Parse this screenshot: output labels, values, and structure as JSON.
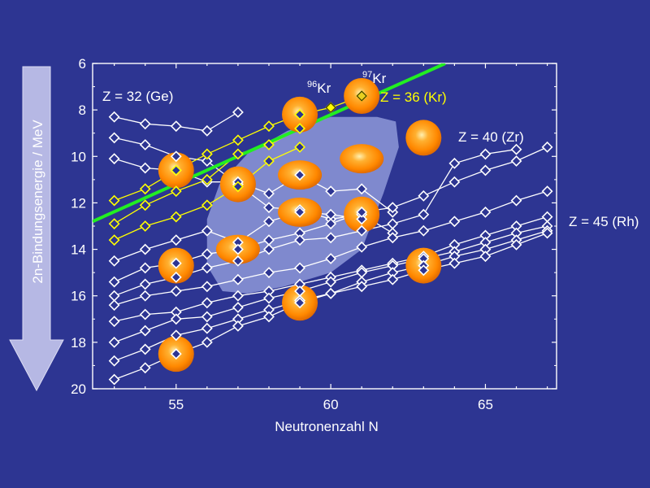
{
  "colors": {
    "background": "#2d3592",
    "series_line": "#ffffff",
    "kr_series": "#ffff00",
    "fit_line": "#22ee22",
    "marker_fill": "#2d3592",
    "highlight_region": "#8e98d8",
    "highlight_circle": "#ff9910"
  },
  "chart_data": {
    "type": "scatter",
    "xlabel": "Neutronenzahl N",
    "ylabel": "2n-Bindungsenergie / MeV",
    "xlim": [
      52.3,
      67.3
    ],
    "ylim": [
      20,
      6
    ],
    "y_inverted": true,
    "x_ticks": [
      55,
      60,
      65
    ],
    "y_ticks": [
      6,
      8,
      10,
      12,
      14,
      16,
      18,
      20
    ],
    "grid": false,
    "series": [
      {
        "name": "Z = 32 (Ge)",
        "points": [
          [
            53,
            8.3
          ],
          [
            54,
            8.6
          ],
          [
            55,
            8.7
          ],
          [
            56,
            8.9
          ],
          [
            57,
            8.1
          ]
        ]
      },
      {
        "points": [
          [
            53,
            9.2
          ],
          [
            54,
            9.5
          ],
          [
            55,
            10.0
          ],
          [
            56,
            10.2
          ],
          [
            57,
            11.2
          ],
          [
            58,
            12.2
          ],
          [
            59,
            12.3
          ],
          [
            60,
            12.7
          ],
          [
            61,
            12.5
          ],
          [
            62,
            13.3
          ]
        ]
      },
      {
        "points": [
          [
            53,
            10.1
          ],
          [
            54,
            10.5
          ],
          [
            55,
            10.6
          ],
          [
            56,
            11.1
          ],
          [
            57,
            11.1
          ],
          [
            58,
            11.6
          ],
          [
            59,
            10.8
          ],
          [
            60,
            11.5
          ],
          [
            61,
            11.4
          ],
          [
            62,
            12.4
          ]
        ]
      },
      {
        "name": "Z = 36 (Kr)",
        "highlight": "kr",
        "points": [
          [
            53,
            11.9
          ],
          [
            54,
            11.4
          ],
          [
            55,
            10.6
          ],
          [
            56,
            9.9
          ],
          [
            57,
            9.3
          ],
          [
            58,
            8.7
          ],
          [
            59,
            8.2
          ],
          [
            60,
            7.9
          ],
          [
            61,
            7.4
          ]
        ]
      },
      {
        "highlight": "kr",
        "points": [
          [
            53,
            12.9
          ],
          [
            54,
            12.1
          ],
          [
            55,
            11.5
          ],
          [
            56,
            11.0
          ],
          [
            57,
            9.9
          ],
          [
            58,
            9.5
          ],
          [
            59,
            8.8
          ]
        ]
      },
      {
        "highlight": "kr",
        "points": [
          [
            53,
            13.6
          ],
          [
            54,
            13.0
          ],
          [
            55,
            12.6
          ],
          [
            56,
            12.1
          ],
          [
            57,
            11.3
          ],
          [
            58,
            10.2
          ],
          [
            59,
            9.6
          ]
        ]
      },
      {
        "points": [
          [
            53,
            14.5
          ],
          [
            54,
            14.0
          ],
          [
            55,
            13.6
          ],
          [
            56,
            13.2
          ],
          [
            57,
            13.7
          ],
          [
            58,
            12.8
          ],
          [
            59,
            12.4
          ],
          [
            60,
            12.5
          ],
          [
            61,
            12.7
          ]
        ]
      },
      {
        "points": [
          [
            53,
            15.4
          ],
          [
            54,
            14.8
          ],
          [
            55,
            14.6
          ],
          [
            56,
            14.2
          ],
          [
            57,
            14.0
          ],
          [
            58,
            13.6
          ],
          [
            59,
            13.3
          ],
          [
            60,
            12.9
          ],
          [
            61,
            12.4
          ],
          [
            62,
            12.2
          ],
          [
            63,
            11.7
          ],
          [
            64,
            11.1
          ],
          [
            65,
            10.6
          ],
          [
            66,
            10.2
          ],
          [
            67,
            9.6
          ]
        ]
      },
      {
        "name": "Z = 40 (Zr)",
        "points": [
          [
            53,
            16.0
          ],
          [
            54,
            15.5
          ],
          [
            55,
            15.2
          ],
          [
            56,
            14.8
          ],
          [
            57,
            14.5
          ],
          [
            58,
            14.0
          ],
          [
            59,
            13.6
          ],
          [
            60,
            13.5
          ],
          [
            61,
            13.2
          ],
          [
            62,
            12.9
          ],
          [
            63,
            12.5
          ],
          [
            64,
            10.3
          ],
          [
            65,
            9.9
          ],
          [
            66,
            9.7
          ]
        ]
      },
      {
        "points": [
          [
            53,
            16.4
          ],
          [
            54,
            16.0
          ],
          [
            55,
            15.8
          ],
          [
            56,
            15.6
          ],
          [
            57,
            15.3
          ],
          [
            58,
            15.0
          ],
          [
            59,
            14.8
          ],
          [
            60,
            14.4
          ],
          [
            61,
            13.9
          ],
          [
            62,
            13.5
          ],
          [
            63,
            13.2
          ],
          [
            64,
            12.8
          ],
          [
            65,
            12.4
          ],
          [
            66,
            11.9
          ],
          [
            67,
            11.5
          ]
        ]
      },
      {
        "points": [
          [
            53,
            17.1
          ],
          [
            54,
            16.8
          ],
          [
            55,
            16.7
          ],
          [
            56,
            16.3
          ],
          [
            57,
            16.0
          ],
          [
            58,
            15.8
          ],
          [
            59,
            15.5
          ],
          [
            60,
            15.2
          ],
          [
            61,
            14.9
          ],
          [
            62,
            14.6
          ],
          [
            63,
            14.3
          ],
          [
            64,
            13.8
          ],
          [
            65,
            13.4
          ],
          [
            66,
            13.0
          ],
          [
            67,
            12.6
          ]
        ]
      },
      {
        "points": [
          [
            53,
            18.0
          ],
          [
            54,
            17.5
          ],
          [
            55,
            17.0
          ],
          [
            56,
            16.9
          ],
          [
            57,
            16.5
          ],
          [
            58,
            16.1
          ],
          [
            59,
            15.8
          ],
          [
            60,
            15.4
          ],
          [
            61,
            15.0
          ],
          [
            62,
            14.7
          ],
          [
            63,
            14.4
          ],
          [
            64,
            14.1
          ],
          [
            65,
            13.7
          ],
          [
            66,
            13.3
          ],
          [
            67,
            13.0
          ]
        ]
      },
      {
        "points": [
          [
            53,
            18.8
          ],
          [
            54,
            18.3
          ],
          [
            55,
            17.7
          ],
          [
            56,
            17.4
          ],
          [
            57,
            17.0
          ],
          [
            58,
            16.6
          ],
          [
            59,
            16.2
          ],
          [
            60,
            15.9
          ],
          [
            61,
            15.4
          ],
          [
            62,
            15.0
          ],
          [
            63,
            14.7
          ],
          [
            64,
            14.3
          ],
          [
            65,
            14.0
          ],
          [
            66,
            13.6
          ],
          [
            67,
            13.2
          ]
        ]
      },
      {
        "name": "Z = 45 (Rh)",
        "points": [
          [
            53,
            19.6
          ],
          [
            54,
            19.1
          ],
          [
            55,
            18.5
          ],
          [
            56,
            18.0
          ],
          [
            57,
            17.3
          ],
          [
            58,
            16.9
          ],
          [
            59,
            16.3
          ],
          [
            60,
            15.9
          ],
          [
            61,
            15.6
          ],
          [
            62,
            15.3
          ],
          [
            63,
            14.9
          ],
          [
            64,
            14.6
          ],
          [
            65,
            14.3
          ],
          [
            66,
            13.8
          ],
          [
            67,
            13.3
          ]
        ]
      }
    ],
    "fit_line": {
      "x": [
        52.3,
        63.7
      ],
      "y": [
        12.8,
        6.0
      ]
    },
    "highlight_region": [
      [
        56.4,
        11.2
      ],
      [
        57.3,
        9.9
      ],
      [
        58.6,
        8.9
      ],
      [
        60.0,
        8.3
      ],
      [
        61.5,
        8.3
      ],
      [
        62.1,
        8.5
      ],
      [
        62.2,
        9.6
      ],
      [
        61.7,
        11.6
      ],
      [
        61.0,
        14.0
      ],
      [
        60.0,
        15.0
      ],
      [
        58.5,
        15.6
      ],
      [
        57.3,
        15.9
      ],
      [
        56.5,
        15.8
      ],
      [
        56.0,
        14.7
      ],
      [
        56.0,
        12.7
      ]
    ],
    "highlight_circles": [
      {
        "x": 55,
        "y": 10.6,
        "shape": "circle"
      },
      {
        "x": 57,
        "y": 11.2,
        "shape": "circle"
      },
      {
        "x": 55,
        "y": 14.7,
        "shape": "circle"
      },
      {
        "x": 57,
        "y": 14.0,
        "shape": "ellipse"
      },
      {
        "x": 55,
        "y": 18.5,
        "shape": "circle"
      },
      {
        "x": 59,
        "y": 8.2,
        "shape": "circle"
      },
      {
        "x": 59,
        "y": 10.8,
        "shape": "ellipse"
      },
      {
        "x": 59,
        "y": 12.4,
        "shape": "ellipse"
      },
      {
        "x": 59,
        "y": 16.3,
        "shape": "circle"
      },
      {
        "x": 61,
        "y": 7.4,
        "shape": "circle"
      },
      {
        "x": 61,
        "y": 10.1,
        "shape": "ellipse"
      },
      {
        "x": 61,
        "y": 12.5,
        "shape": "circle"
      },
      {
        "x": 63,
        "y": 9.2,
        "shape": "circle"
      },
      {
        "x": 63,
        "y": 14.7,
        "shape": "circle"
      }
    ],
    "annotations": [
      {
        "id": "ge",
        "text": "Z = 32 (Ge)",
        "color": "white"
      },
      {
        "id": "kr",
        "text": "Z = 36 (Kr)",
        "color": "yellow"
      },
      {
        "id": "zr",
        "text": "Z = 40 (Zr)",
        "color": "white"
      },
      {
        "id": "rh",
        "text": "Z = 45 (Rh)",
        "color": "white"
      },
      {
        "id": "kr96",
        "text": "Kr",
        "sup": "96",
        "color": "white"
      },
      {
        "id": "kr97",
        "text": "Kr",
        "sup": "97",
        "color": "white"
      }
    ]
  }
}
